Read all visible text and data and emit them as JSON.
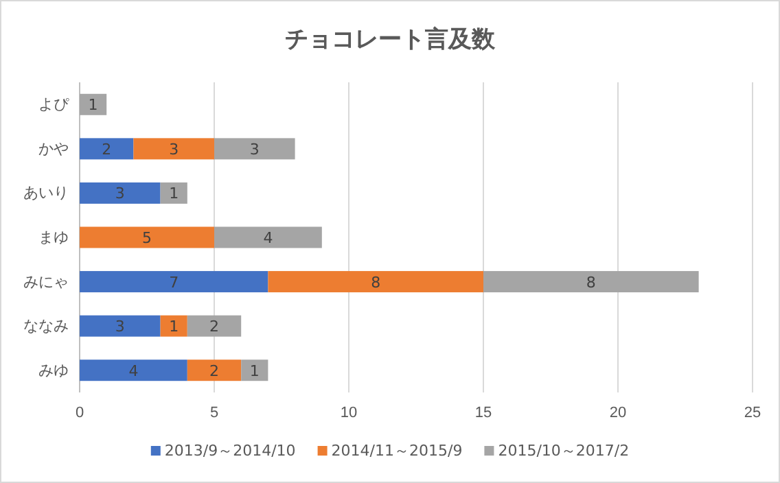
{
  "chart_data": {
    "type": "bar",
    "orientation": "horizontal",
    "stacked": true,
    "title": "チョコレート言及数",
    "categories": [
      "よぴ",
      "かや",
      "あいり",
      "まゆ",
      "みにゃ",
      "ななみ",
      "みゆ"
    ],
    "series": [
      {
        "name": "2013/9～2014/10",
        "color": "#4472c4",
        "values": [
          null,
          2,
          3,
          null,
          7,
          3,
          4
        ]
      },
      {
        "name": "2014/11～2015/9",
        "color": "#ed7d31",
        "values": [
          null,
          3,
          null,
          5,
          8,
          1,
          2
        ]
      },
      {
        "name": "2015/10～2017/2",
        "color": "#a5a5a5",
        "values": [
          1,
          3,
          1,
          4,
          8,
          2,
          1
        ]
      }
    ],
    "xlim": [
      0,
      25
    ],
    "xticks": [
      0,
      5,
      10,
      15,
      20,
      25
    ],
    "grid": "x",
    "legend": "bottom",
    "data_labels": true
  }
}
